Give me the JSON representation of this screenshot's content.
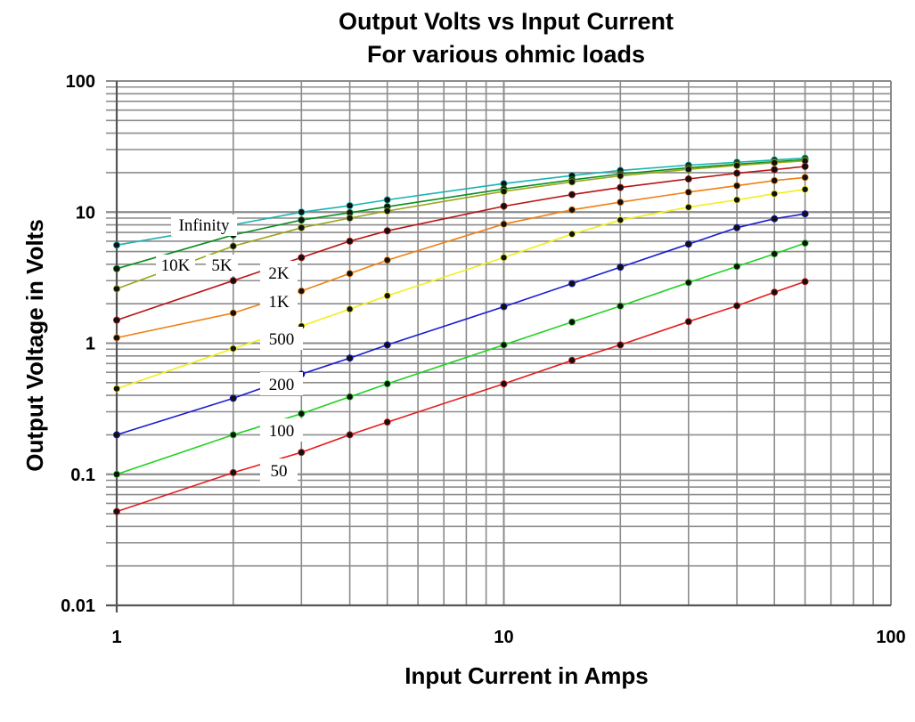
{
  "chart_data": {
    "type": "line",
    "title": "Output Volts vs Input Current",
    "subtitle": "For various ohmic loads",
    "xlabel": "Input Current in Amps",
    "ylabel": "Output Voltage in Volts",
    "x_scale": "log",
    "y_scale": "log",
    "xlim": [
      1,
      100
    ],
    "ylim": [
      0.01,
      100
    ],
    "x_ticks": [
      "1",
      "10",
      "100"
    ],
    "y_ticks": [
      "0.01",
      "0.1",
      "1",
      "10",
      "100"
    ],
    "grid": true,
    "x": [
      1,
      2,
      3,
      4,
      5,
      10,
      15,
      20,
      30,
      40,
      50,
      60
    ],
    "series": [
      {
        "name": "Infinity",
        "color": "#1ab2b2",
        "values": [
          5.6,
          8.0,
          10.0,
          11.2,
          12.4,
          16.5,
          19.0,
          20.8,
          22.8,
          24.0,
          25.0,
          25.8
        ]
      },
      {
        "name": "10K",
        "color": "#0a8f1f",
        "values": [
          3.7,
          6.7,
          8.7,
          9.9,
          11.0,
          15.0,
          17.6,
          19.5,
          21.8,
          23.2,
          24.2,
          25.1
        ]
      },
      {
        "name": "5K",
        "color": "#9aa61a",
        "values": [
          2.6,
          5.5,
          7.6,
          9.0,
          10.2,
          14.4,
          17.0,
          18.9,
          21.2,
          22.7,
          23.8,
          24.6
        ]
      },
      {
        "name": "2K",
        "color": "#b81414",
        "values": [
          1.5,
          3.0,
          4.5,
          6.0,
          7.2,
          11.1,
          13.6,
          15.4,
          17.9,
          19.8,
          21.1,
          22.3
        ]
      },
      {
        "name": "1K",
        "color": "#f07f12",
        "values": [
          1.1,
          1.7,
          2.5,
          3.4,
          4.3,
          8.1,
          10.4,
          11.9,
          14.2,
          15.9,
          17.4,
          18.4
        ]
      },
      {
        "name": "500",
        "color": "#f2ee1a",
        "values": [
          0.45,
          0.91,
          1.35,
          1.82,
          2.3,
          4.5,
          6.8,
          8.7,
          10.9,
          12.4,
          13.8,
          14.9
        ]
      },
      {
        "name": "200",
        "color": "#1a1ad1",
        "values": [
          0.2,
          0.38,
          0.58,
          0.77,
          0.97,
          1.9,
          2.85,
          3.8,
          5.7,
          7.6,
          8.9,
          9.7
        ]
      },
      {
        "name": "100",
        "color": "#22d122",
        "values": [
          0.1,
          0.2,
          0.29,
          0.39,
          0.49,
          0.97,
          1.45,
          1.92,
          2.9,
          3.85,
          4.8,
          5.8
        ]
      },
      {
        "name": "50",
        "color": "#e41c1c",
        "values": [
          0.052,
          0.103,
          0.147,
          0.2,
          0.25,
          0.49,
          0.74,
          0.97,
          1.46,
          1.93,
          2.45,
          2.95
        ]
      }
    ]
  }
}
